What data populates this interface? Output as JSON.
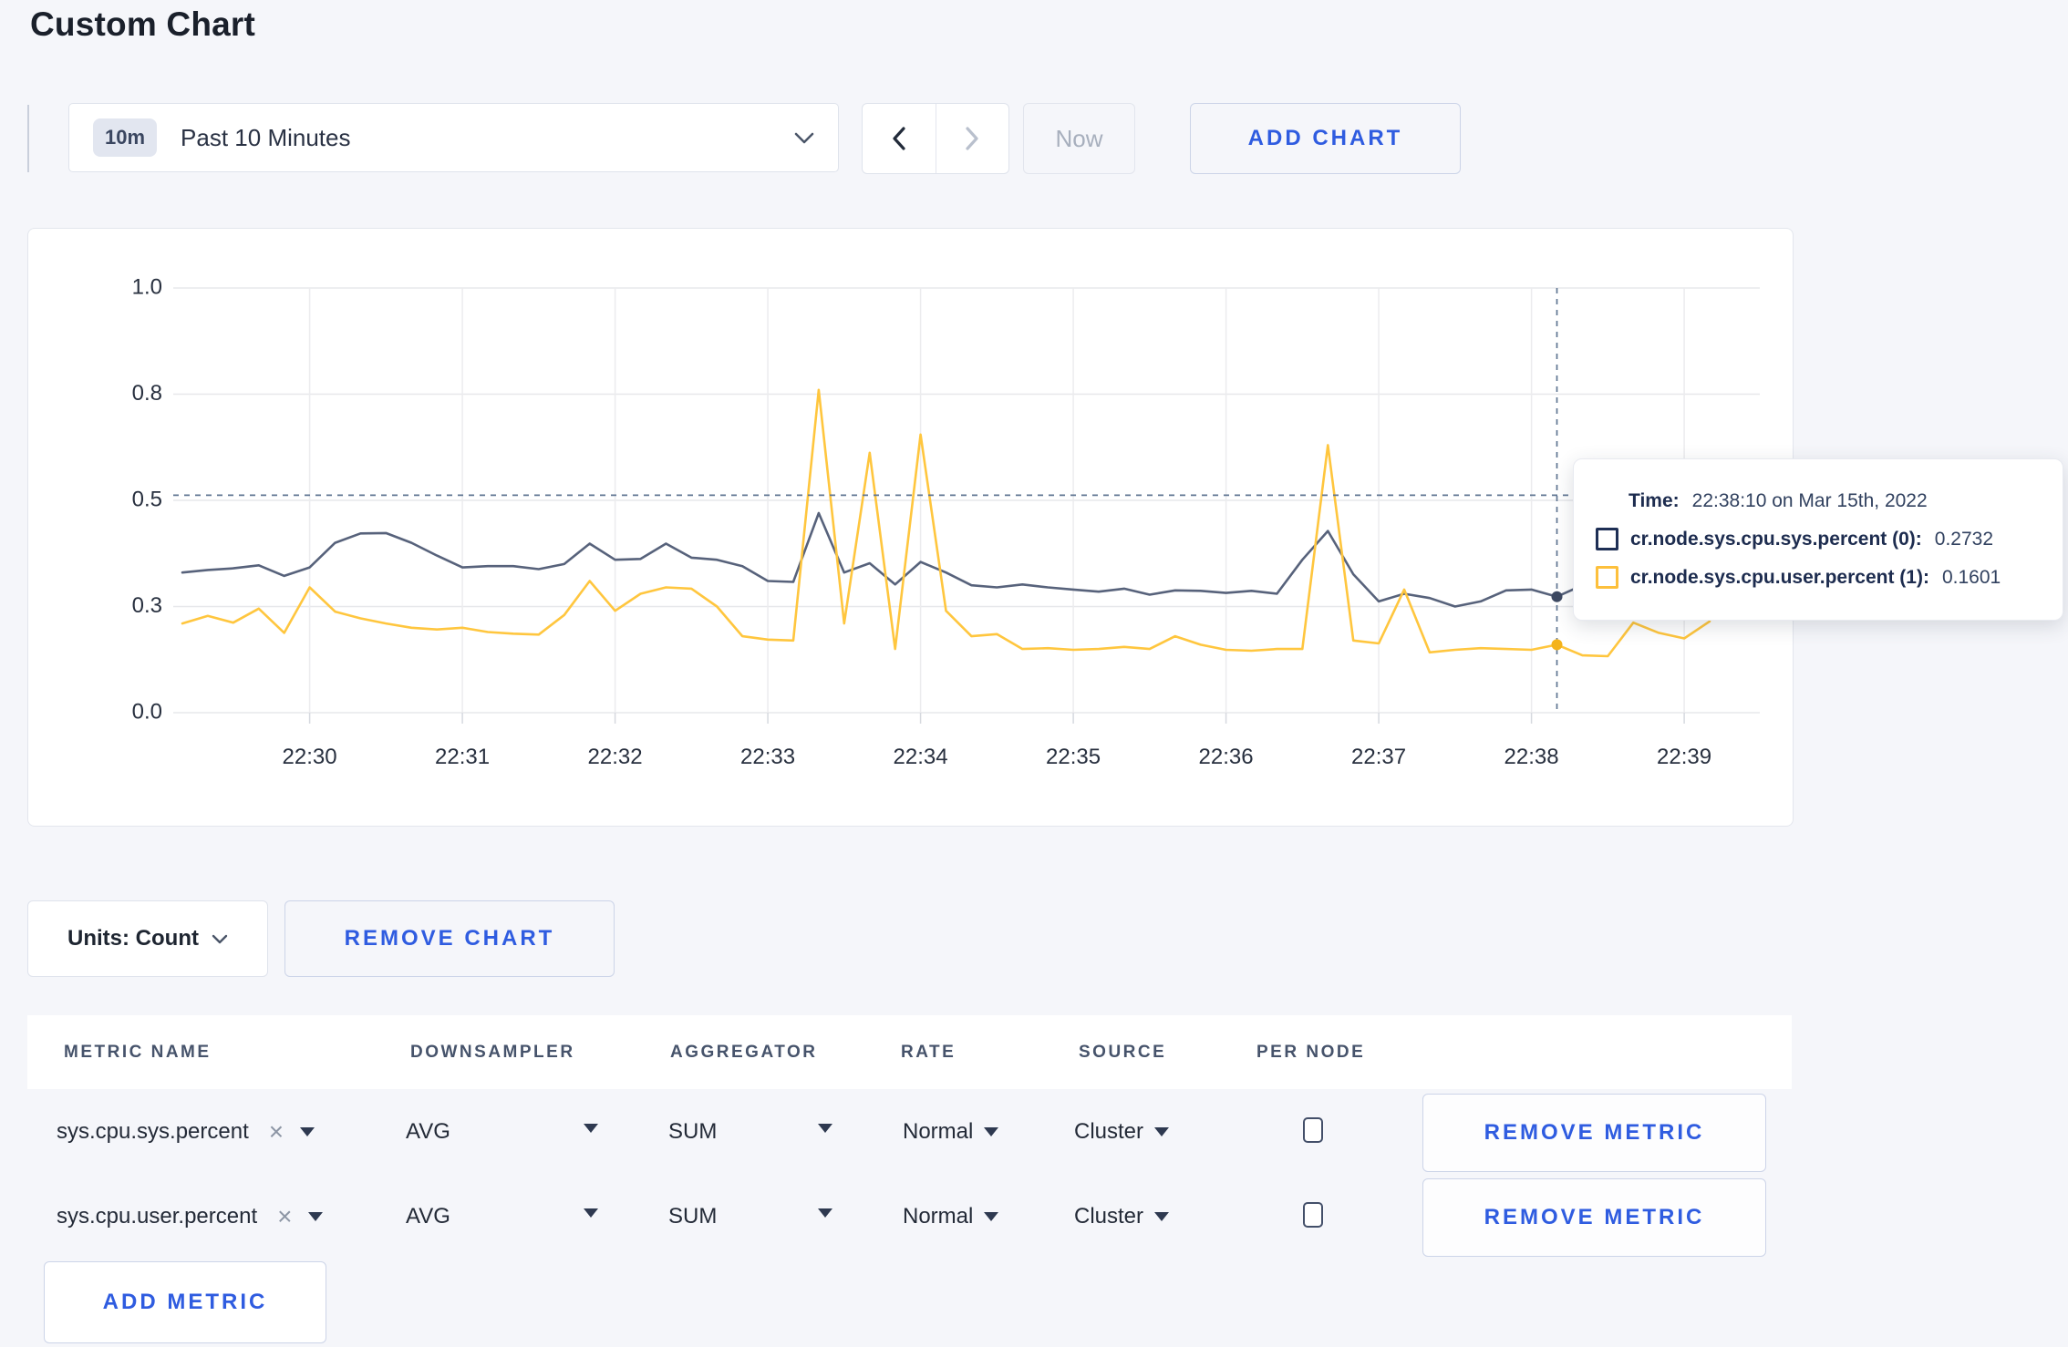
{
  "page_title": "Custom Chart",
  "colors": {
    "accent_blue": "#2f5ce0",
    "series_sys": "#57627b",
    "series_user": "#ffc63e",
    "dot_sys": "#3d4962",
    "dot_user": "#f4b31c",
    "guide_dash": "#5f7592",
    "gridline": "#e7e8eb",
    "page_bg": "#f5f6fa",
    "card_bg": "#ffffff"
  },
  "toolbar": {
    "range_badge": "10m",
    "range_label": "Past 10 Minutes",
    "now_label": "Now",
    "add_chart_label": "ADD CHART"
  },
  "chart_data": {
    "type": "line",
    "title": "",
    "xlabel": "",
    "ylabel": "",
    "ylim": [
      0,
      1
    ],
    "x_start_time": "22:29:10",
    "x_end_time": "22:39:10",
    "x_interval_seconds": 10,
    "x_axis_ticks": [
      "22:30",
      "22:31",
      "22:32",
      "22:33",
      "22:34",
      "22:35",
      "22:36",
      "22:37",
      "22:38",
      "22:39"
    ],
    "y_axis_tick_labels": [
      "0.0",
      "0.3",
      "0.5",
      "0.8",
      "1.0"
    ],
    "y_axis_tick_values": [
      0,
      0.25,
      0.5,
      0.75,
      1.0
    ],
    "grid": true,
    "legend_position": "tooltip-only",
    "series": [
      {
        "name": "cr.node.sys.cpu.sys.percent",
        "color": "#57627b",
        "values": [
          0.33,
          0.336,
          0.34,
          0.347,
          0.322,
          0.342,
          0.4,
          0.422,
          0.423,
          0.4,
          0.37,
          0.342,
          0.345,
          0.345,
          0.338,
          0.35,
          0.398,
          0.36,
          0.362,
          0.398,
          0.365,
          0.36,
          0.345,
          0.31,
          0.308,
          0.47,
          0.33,
          0.352,
          0.302,
          0.355,
          0.33,
          0.3,
          0.295,
          0.302,
          0.295,
          0.29,
          0.285,
          0.292,
          0.278,
          0.288,
          0.287,
          0.282,
          0.287,
          0.28,
          0.36,
          0.428,
          0.326,
          0.262,
          0.28,
          0.27,
          0.25,
          0.262,
          0.288,
          0.29,
          0.2732,
          0.3,
          0.305,
          0.31,
          0.3,
          0.295,
          0.3
        ]
      },
      {
        "name": "cr.node.sys.cpu.user.percent",
        "color": "#ffc63e",
        "values": [
          0.21,
          0.228,
          0.212,
          0.245,
          0.188,
          0.295,
          0.238,
          0.222,
          0.21,
          0.2,
          0.196,
          0.2,
          0.19,
          0.186,
          0.184,
          0.23,
          0.31,
          0.24,
          0.28,
          0.295,
          0.292,
          0.25,
          0.18,
          0.172,
          0.17,
          0.76,
          0.21,
          0.612,
          0.15,
          0.655,
          0.24,
          0.18,
          0.185,
          0.15,
          0.152,
          0.148,
          0.15,
          0.155,
          0.15,
          0.18,
          0.16,
          0.148,
          0.146,
          0.15,
          0.15,
          0.63,
          0.17,
          0.163,
          0.29,
          0.142,
          0.148,
          0.152,
          0.15,
          0.148,
          0.1601,
          0.135,
          0.133,
          0.212,
          0.188,
          0.175,
          0.215
        ]
      }
    ],
    "hover": {
      "index": 54,
      "time": "22:38:10",
      "guide_value": 0.512,
      "sys_value": 0.2732,
      "user_value": 0.1601
    }
  },
  "tooltip": {
    "time_label": "Time:",
    "time_value": "22:38:10 on Mar 15th, 2022",
    "series": [
      {
        "label": "cr.node.sys.cpu.sys.percent (0):",
        "value": "0.2732",
        "color": "#1e2f55"
      },
      {
        "label": "cr.node.sys.cpu.user.percent (1):",
        "value": "0.1601",
        "color": "#fdc03c"
      }
    ]
  },
  "units_bar": {
    "units_label": "Units: Count",
    "remove_chart_label": "REMOVE CHART"
  },
  "metrics_table": {
    "headers": [
      "METRIC NAME",
      "DOWNSAMPLER",
      "AGGREGATOR",
      "RATE",
      "SOURCE",
      "PER NODE"
    ],
    "remove_metric_label": "REMOVE METRIC",
    "add_metric_label": "ADD METRIC",
    "rows": [
      {
        "name": "sys.cpu.sys.percent",
        "downsampler": "AVG",
        "aggregator": "SUM",
        "rate": "Normal",
        "source": "Cluster",
        "per_node_checked": false
      },
      {
        "name": "sys.cpu.user.percent",
        "downsampler": "AVG",
        "aggregator": "SUM",
        "rate": "Normal",
        "source": "Cluster",
        "per_node_checked": false
      }
    ]
  }
}
